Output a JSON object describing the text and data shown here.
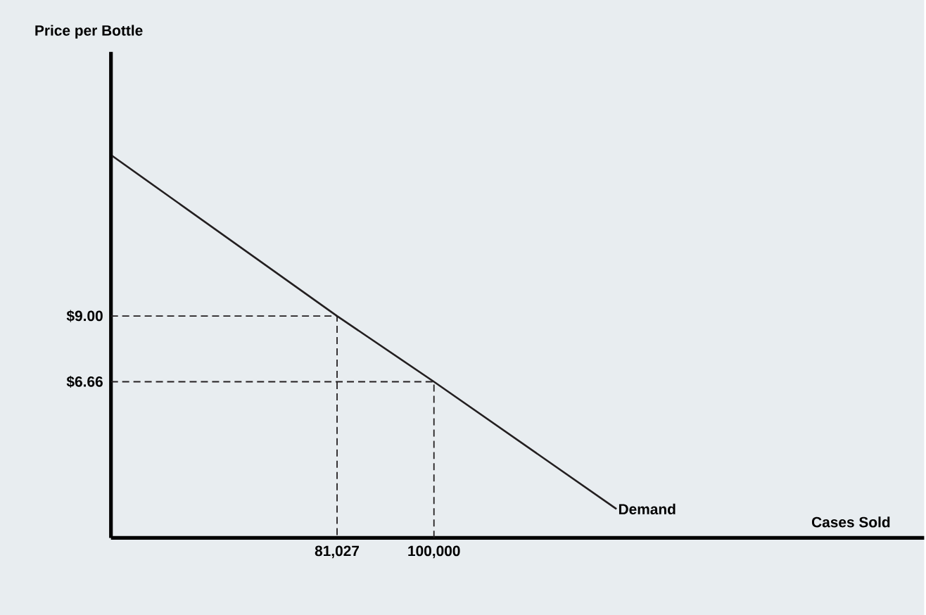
{
  "chart_data": {
    "type": "line",
    "xlabel": "Cases Sold",
    "ylabel": "Price per Bottle",
    "xlim": [
      36750,
      196000
    ],
    "ylim": [
      1.1,
      18.4
    ],
    "xticks": [
      {
        "value": 81027,
        "label": "81,027"
      },
      {
        "value": 100000,
        "label": "100,000"
      }
    ],
    "yticks": [
      {
        "value": 6.66,
        "label": "$6.66"
      },
      {
        "value": 9,
        "label": "$9.00"
      }
    ],
    "series": [
      {
        "color": "#231f20",
        "line_style": "solid",
        "x": [
          37000,
          81027,
          100000,
          135750
        ],
        "values": [
          14.7,
          9,
          6.66,
          2.13
        ]
      },
      {
        "color": "#231f20",
        "line_style": "dashed",
        "x": [
          36750,
          81027,
          81027
        ],
        "values": [
          9,
          9,
          1.1
        ]
      },
      {
        "color": "#231f20",
        "line_style": "dashed",
        "x": [
          36750,
          100000,
          100000
        ],
        "values": [
          6.66,
          6.66,
          1.1
        ]
      }
    ],
    "annotations": [
      {
        "text": "Demand",
        "x": 135750,
        "y": 2.13
      }
    ],
    "grid": false,
    "marker": "none"
  }
}
